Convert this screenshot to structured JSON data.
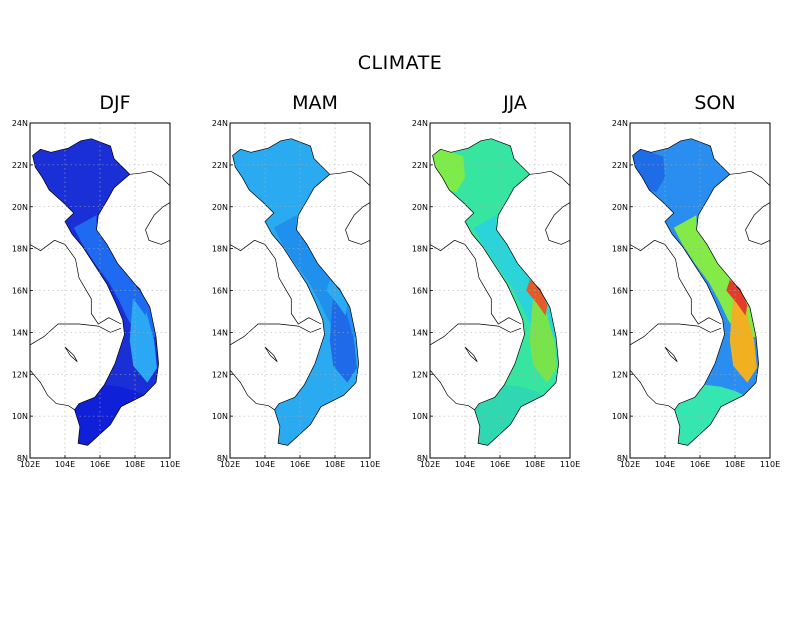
{
  "title": "CLIMATE",
  "panels": [
    {
      "label": "DJF",
      "palette": {
        "north": "#1a2fd6",
        "northwest": "#1a2fd6",
        "coast": "#1e6af0",
        "south": "#1020d8",
        "east": "#2aa8f4",
        "hot": "#1e6af0"
      }
    },
    {
      "label": "MAM",
      "palette": {
        "north": "#2aaaf0",
        "northwest": "#2aaaf0",
        "coast": "#1f90ee",
        "south": "#2aaaf0",
        "east": "#1e6ae8",
        "hot": "#2aaaf0"
      }
    },
    {
      "label": "JJA",
      "palette": {
        "north": "#36e6a0",
        "northwest": "#7dec4a",
        "coast": "#2ad4d8",
        "south": "#2fd8b0",
        "east": "#78e34a",
        "hot": "#e45a2a"
      }
    },
    {
      "label": "SON",
      "palette": {
        "north": "#2a8ef0",
        "northwest": "#1f6de6",
        "coast": "#84ea48",
        "south": "#36e6b0",
        "east": "#f0b020",
        "hot": "#e43c2a"
      }
    }
  ],
  "axes": {
    "lon_ticks": [
      "102E",
      "104E",
      "106E",
      "108E",
      "110E"
    ],
    "lat_ticks": [
      "24N",
      "22N",
      "20N",
      "18N",
      "16N",
      "14N",
      "12N",
      "10N",
      "8N"
    ],
    "lon_range": [
      102,
      110
    ],
    "lat_range": [
      8,
      24
    ]
  }
}
